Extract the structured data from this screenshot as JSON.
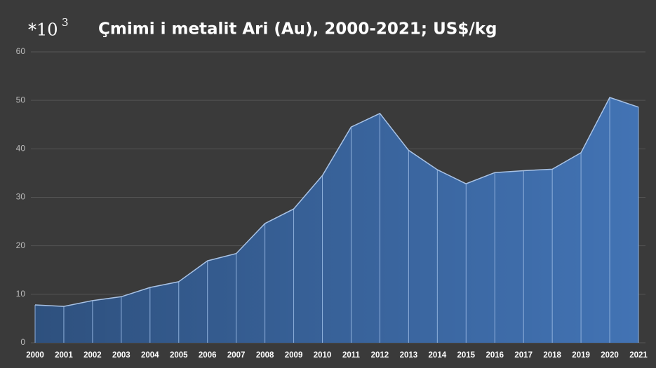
{
  "chart_data": {
    "type": "area",
    "title": "Çmimi i metalit Ari (Au), 2000-2021; US$/kg",
    "annotation": {
      "base": "*10",
      "exponent": "3"
    },
    "categories": [
      "2000",
      "2001",
      "2002",
      "2003",
      "2004",
      "2005",
      "2006",
      "2007",
      "2008",
      "2009",
      "2010",
      "2011",
      "2012",
      "2013",
      "2014",
      "2015",
      "2016",
      "2017",
      "2018",
      "2019",
      "2020",
      "2021"
    ],
    "series": [
      {
        "color": "#4273b4",
        "values": [
          7.8,
          7.5,
          8.7,
          9.5,
          11.4,
          12.6,
          16.9,
          18.4,
          24.6,
          27.6,
          34.5,
          44.5,
          47.3,
          39.7,
          35.7,
          32.8,
          35.1,
          35.5,
          35.8,
          39.2,
          50.6,
          48.6
        ]
      }
    ],
    "ylim": [
      0,
      60
    ],
    "yticks": [
      0,
      10,
      20,
      30,
      40,
      50,
      60
    ],
    "grid": true
  }
}
